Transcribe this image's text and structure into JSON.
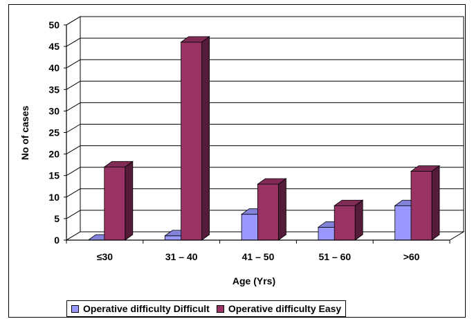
{
  "chart_data": {
    "type": "bar",
    "xlabel": "Age (Yrs)",
    "ylabel": "No of cases",
    "ylim": [
      0,
      50
    ],
    "yticks": [
      "0",
      "5",
      "10",
      "15",
      "20",
      "25",
      "30",
      "35",
      "40",
      "45",
      "50"
    ],
    "categories": [
      "≤30",
      "31 – 40",
      "41 – 50",
      "51 – 60",
      ">60"
    ],
    "series": [
      {
        "name": "Operative difficulty Difficult",
        "values": [
          0,
          1,
          6,
          3,
          8
        ],
        "color": "#9999ff"
      },
      {
        "name": "Operative difficulty Easy",
        "values": [
          17,
          46,
          13,
          8,
          16
        ],
        "color": "#993366"
      }
    ],
    "grid": true,
    "legend_position": "bottom"
  }
}
